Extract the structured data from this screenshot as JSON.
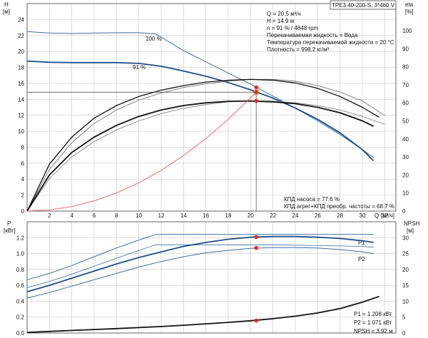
{
  "chart_data": [
    {
      "type": "line",
      "panel": "top",
      "title": "TPE3 40-200-S, 3*460 V",
      "ylabel_left": "H",
      "yunit_left": "[м]",
      "ylabel_right": "eta",
      "yunit_right": "[%]",
      "xlabel": "Q",
      "xunit": "[м³/ч]",
      "xlim": [
        0,
        33
      ],
      "ylim_left": [
        0,
        26
      ],
      "ylim_right": [
        0,
        115
      ],
      "xticks": [
        0,
        2,
        4,
        6,
        8,
        10,
        12,
        14,
        16,
        18,
        20,
        22,
        24,
        26,
        28,
        30,
        32
      ],
      "yticks_left": [
        0,
        2,
        4,
        6,
        8,
        10,
        12,
        14,
        16,
        18,
        20,
        22,
        24
      ],
      "yticks_right": [
        0,
        10,
        20,
        30,
        40,
        50,
        60,
        70,
        80,
        90,
        100
      ],
      "info_lines": [
        "Q = 20.5 м³/ч",
        "H = 14.9 м",
        "n = 91 % / 4848 rpm",
        "Перекачиваемая жидкость = Вода",
        "Температура перекачиваемой жидкости = 20 °C",
        "Плотность = 998.2 кг/м³"
      ],
      "efficiency_lines": [
        "КПД насоса = 77.6 %",
        "КПД агрег+КПД преобр. частоты = 68.7 %"
      ],
      "curve_labels": [
        "100 %",
        "91 %"
      ],
      "series": [
        {
          "name": "H 100 %",
          "axis": "left",
          "color": "#3a6ea5",
          "width": 1,
          "x": [
            0,
            2,
            4,
            6,
            8,
            10,
            11.5,
            14,
            16,
            18,
            20,
            22,
            24,
            26,
            28,
            30,
            31
          ],
          "y": [
            22.5,
            22.3,
            22.25,
            22.3,
            22.35,
            22.35,
            22.2,
            20.1,
            18.7,
            17.3,
            15.9,
            14.4,
            12.9,
            11.3,
            9.6,
            7.7,
            6.7
          ]
        },
        {
          "name": "H 91 %",
          "axis": "left",
          "color": "#1d4f8c",
          "width": 1.8,
          "x": [
            0,
            2,
            4,
            6,
            8,
            10,
            12,
            14,
            16,
            18,
            20,
            22,
            24,
            26,
            28,
            30,
            31
          ],
          "y": [
            18.8,
            18.65,
            18.6,
            18.6,
            18.6,
            18.5,
            18.15,
            17.55,
            16.9,
            16.1,
            15.2,
            14.15,
            12.9,
            11.5,
            9.8,
            7.7,
            6.3
          ]
        },
        {
          "name": "eta pump 100 % (thin)",
          "axis": "right",
          "color": "#666",
          "width": 0.8,
          "x": [
            0,
            2,
            4,
            6,
            8,
            10,
            12,
            14,
            16,
            18,
            20,
            22,
            24,
            26,
            28,
            30,
            32
          ],
          "y": [
            0,
            23,
            38,
            48.5,
            56,
            61.5,
            65.5,
            68.5,
            70.5,
            72,
            73,
            73,
            72,
            69.5,
            66,
            61,
            53
          ]
        },
        {
          "name": "eta pump 100 %",
          "axis": "right",
          "color": "#111",
          "width": 1.3,
          "x": [
            0,
            2,
            4,
            6,
            8,
            10,
            12,
            14,
            16,
            18,
            20,
            22,
            24,
            26,
            28,
            30,
            31.5
          ],
          "y": [
            0,
            26,
            41,
            51.5,
            58.5,
            63.5,
            67,
            69.5,
            71.5,
            72.5,
            73,
            72.5,
            71,
            68,
            63.5,
            57.5,
            52
          ]
        },
        {
          "name": "eta total 91 % (thin)",
          "axis": "right",
          "color": "#777",
          "width": 0.8,
          "x": [
            0,
            2,
            4,
            6,
            8,
            10,
            12,
            14,
            16,
            18,
            20,
            22,
            24,
            26,
            28,
            30,
            32
          ],
          "y": [
            0,
            18,
            30,
            38.5,
            45,
            50,
            54,
            57,
            59,
            60.5,
            61,
            61,
            60,
            58.5,
            56,
            52.5,
            48
          ]
        },
        {
          "name": "eta total 91 %",
          "axis": "right",
          "color": "#111",
          "width": 1.8,
          "x": [
            0,
            2,
            4,
            6,
            8,
            10,
            12,
            14,
            16,
            18,
            20,
            22,
            24,
            26,
            28,
            30,
            31
          ],
          "y": [
            0,
            20,
            32.5,
            41,
            47.5,
            52.5,
            56,
            58.5,
            60,
            60.8,
            61,
            60.5,
            59.5,
            57.5,
            54.5,
            50,
            47
          ]
        },
        {
          "name": "System curve",
          "axis": "left",
          "color": "#e84a4a",
          "width": 0.8,
          "x": [
            0,
            2,
            4,
            6,
            8,
            10,
            12,
            14,
            16,
            18,
            20,
            20.5
          ],
          "y": [
            0,
            0.14,
            0.57,
            1.28,
            2.27,
            3.55,
            5.1,
            6.96,
            9.1,
            11.5,
            14.2,
            14.9
          ]
        }
      ],
      "operating_points": [
        {
          "x": 20.5,
          "y": 14.9,
          "axis": "left"
        },
        {
          "x": 20.5,
          "y": 15.5,
          "axis": "left"
        },
        {
          "x": 20.5,
          "y": 13.8,
          "axis": "left"
        }
      ],
      "guide_point": {
        "x": 20.5,
        "y": 14.9
      }
    },
    {
      "type": "line",
      "panel": "bottom",
      "ylabel_left": "P",
      "yunit_left": "[кВт]",
      "ylabel_right": "NPSH",
      "yunit_right": "[м]",
      "xlim": [
        0,
        33
      ],
      "ylim_left": [
        0,
        1.4
      ],
      "ylim_right": [
        0,
        35
      ],
      "yticks_left": [
        0.0,
        0.2,
        0.4,
        0.6,
        0.8,
        1.0,
        1.2
      ],
      "yticks_left_labels": [
        "0.0",
        "0.2",
        "0.4",
        "0.6",
        "0.8",
        "1.0",
        "1.2"
      ],
      "yticks_right": [
        0,
        5,
        10,
        15,
        20,
        25,
        30
      ],
      "series_labels": [
        "P1",
        "P2"
      ],
      "value_lines": [
        "P1 = 1.208 кВт",
        "P2 = 1.071 кВт",
        "NPSH = 3.92 м"
      ],
      "series": [
        {
          "name": "P1 100 %",
          "axis": "left",
          "color": "#3a6ea5",
          "width": 1,
          "x": [
            0,
            2,
            4,
            6,
            8,
            10,
            11.5,
            14,
            18,
            22,
            26,
            30,
            31
          ],
          "y": [
            0.67,
            0.75,
            0.85,
            0.96,
            1.07,
            1.17,
            1.24,
            1.24,
            1.24,
            1.24,
            1.24,
            1.24,
            1.24
          ]
        },
        {
          "name": "P2 100 %",
          "axis": "left",
          "color": "#3a6ea5",
          "width": 0.8,
          "x": [
            0,
            2,
            4,
            6,
            8,
            10,
            11.5,
            14,
            18,
            22,
            26,
            30,
            31
          ],
          "y": [
            0.57,
            0.65,
            0.74,
            0.84,
            0.94,
            1.04,
            1.11,
            1.11,
            1.11,
            1.11,
            1.1,
            1.09,
            1.08
          ]
        },
        {
          "name": "P1 91 %",
          "axis": "left",
          "color": "#1d4f8c",
          "width": 1.8,
          "x": [
            0,
            2,
            4,
            6,
            8,
            10,
            12,
            14,
            16,
            18,
            20,
            22,
            24,
            26,
            28,
            30,
            31
          ],
          "y": [
            0.52,
            0.6,
            0.69,
            0.78,
            0.87,
            0.95,
            1.02,
            1.09,
            1.14,
            1.18,
            1.205,
            1.215,
            1.215,
            1.205,
            1.19,
            1.16,
            1.14
          ]
        },
        {
          "name": "P2 91 %",
          "axis": "left",
          "color": "#3a6ea5",
          "width": 1,
          "x": [
            0,
            2,
            4,
            6,
            8,
            10,
            12,
            14,
            16,
            18,
            20,
            22,
            24,
            26,
            28,
            30,
            31
          ],
          "y": [
            0.44,
            0.51,
            0.59,
            0.67,
            0.75,
            0.83,
            0.9,
            0.96,
            1.01,
            1.04,
            1.065,
            1.075,
            1.075,
            1.07,
            1.05,
            1.02,
            1.0
          ]
        },
        {
          "name": "NPSH",
          "axis": "right",
          "color": "#111",
          "width": 1.8,
          "x": [
            0,
            2,
            4,
            6,
            8,
            10,
            12,
            14,
            16,
            18,
            20,
            22,
            24,
            26,
            28,
            30,
            31.5
          ],
          "y": [
            0.2,
            0.5,
            0.8,
            1.1,
            1.4,
            1.7,
            2.05,
            2.45,
            2.9,
            3.35,
            3.85,
            4.5,
            5.3,
            6.3,
            7.7,
            9.7,
            11.5
          ]
        }
      ],
      "operating_points": [
        {
          "x": 20.5,
          "y": 1.208,
          "axis": "left"
        },
        {
          "x": 20.5,
          "y": 1.071,
          "axis": "left"
        },
        {
          "x": 20.5,
          "y": 3.92,
          "axis": "right"
        }
      ]
    }
  ]
}
